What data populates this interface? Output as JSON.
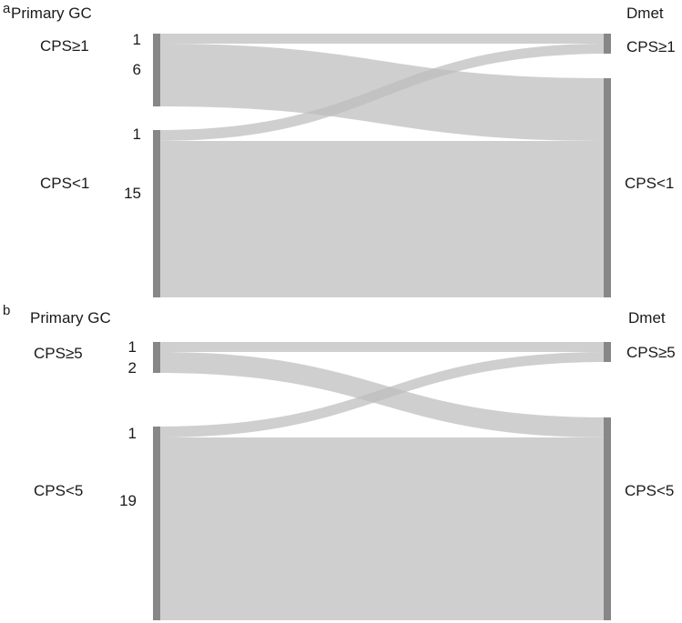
{
  "diagrams": [
    {
      "panel_label": "a",
      "left_title": "Primary GC",
      "right_title": "Dmet",
      "left_groups": [
        {
          "label": "CPS≥1",
          "flows": [
            {
              "count": "1",
              "to": 0
            },
            {
              "count": "6",
              "to": 1
            }
          ]
        },
        {
          "label": "CPS<1",
          "flows": [
            {
              "count": "1",
              "to": 0
            },
            {
              "count": "15",
              "to": 1
            }
          ]
        }
      ],
      "right_groups": [
        {
          "label": "CPS≥1"
        },
        {
          "label": "CPS<1"
        }
      ]
    },
    {
      "panel_label": "b",
      "left_title": "Primary GC",
      "right_title": "Dmet",
      "left_groups": [
        {
          "label": "CPS≥5",
          "flows": [
            {
              "count": "1",
              "to": 0
            },
            {
              "count": "2",
              "to": 1
            }
          ]
        },
        {
          "label": "CPS<5",
          "flows": [
            {
              "count": "1",
              "to": 0
            },
            {
              "count": "19",
              "to": 1
            }
          ]
        }
      ],
      "right_groups": [
        {
          "label": "CPS≥5"
        },
        {
          "label": "CPS<5"
        }
      ]
    }
  ]
}
